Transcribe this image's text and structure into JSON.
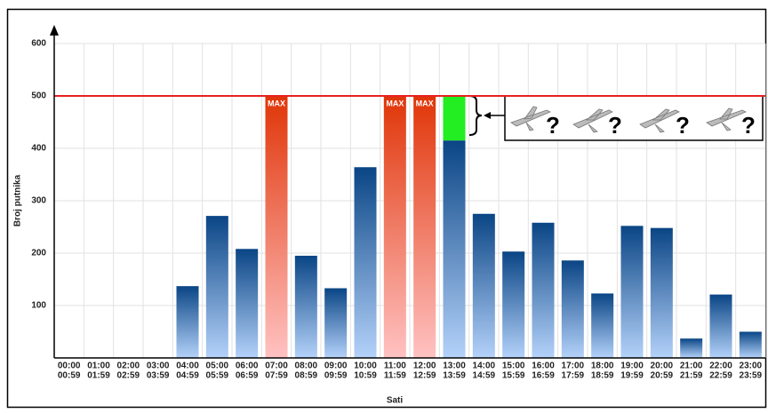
{
  "chart_data": {
    "type": "bar",
    "x_label": "Sati",
    "y_label": "Broj putnika",
    "categories": [
      [
        "00:00",
        "00:59"
      ],
      [
        "01:00",
        "01:59"
      ],
      [
        "02:00",
        "02:59"
      ],
      [
        "03:00",
        "03:59"
      ],
      [
        "04:00",
        "04:59"
      ],
      [
        "05:00",
        "05:59"
      ],
      [
        "06:00",
        "06:59"
      ],
      [
        "07:00",
        "07:59"
      ],
      [
        "08:00",
        "08:59"
      ],
      [
        "09:00",
        "09:59"
      ],
      [
        "10:00",
        "10:59"
      ],
      [
        "11:00",
        "11:59"
      ],
      [
        "12:00",
        "12:59"
      ],
      [
        "13:00",
        "13:59"
      ],
      [
        "14:00",
        "14:59"
      ],
      [
        "15:00",
        "15:59"
      ],
      [
        "16:00",
        "16:59"
      ],
      [
        "17:00",
        "17:59"
      ],
      [
        "18:00",
        "18:59"
      ],
      [
        "19:00",
        "19:59"
      ],
      [
        "20:00",
        "20:59"
      ],
      [
        "21:00",
        "21:59"
      ],
      [
        "22:00",
        "22:59"
      ],
      [
        "23:00",
        "23:59"
      ]
    ],
    "values": [
      0,
      0,
      0,
      0,
      137,
      271,
      208,
      500,
      195,
      133,
      364,
      500,
      500,
      415,
      275,
      203,
      258,
      186,
      123,
      252,
      248,
      37,
      121,
      50
    ],
    "value_labels": [
      null,
      null,
      null,
      null,
      null,
      null,
      null,
      "MAX",
      null,
      null,
      null,
      "MAX",
      "MAX",
      null,
      null,
      null,
      null,
      null,
      null,
      null,
      null,
      null,
      null,
      null
    ],
    "gap_values": [
      null,
      null,
      null,
      null,
      null,
      null,
      null,
      null,
      null,
      null,
      null,
      null,
      null,
      85,
      null,
      null,
      null,
      null,
      null,
      null,
      null,
      null,
      null,
      null
    ],
    "max_line": 500,
    "colors": {
      "normal": [
        "#0a4585",
        "#b4d2fa"
      ],
      "max": [
        "#e03508",
        "#ffc2c2"
      ],
      "gap": "#22ee22",
      "max_line": "#e82020"
    },
    "ylim": [
      0,
      600
    ],
    "yticks": [
      100,
      200,
      300,
      400,
      500,
      600
    ],
    "grid": true,
    "annotation": {
      "marks": [
        "?",
        "?",
        "?",
        "?"
      ]
    }
  }
}
